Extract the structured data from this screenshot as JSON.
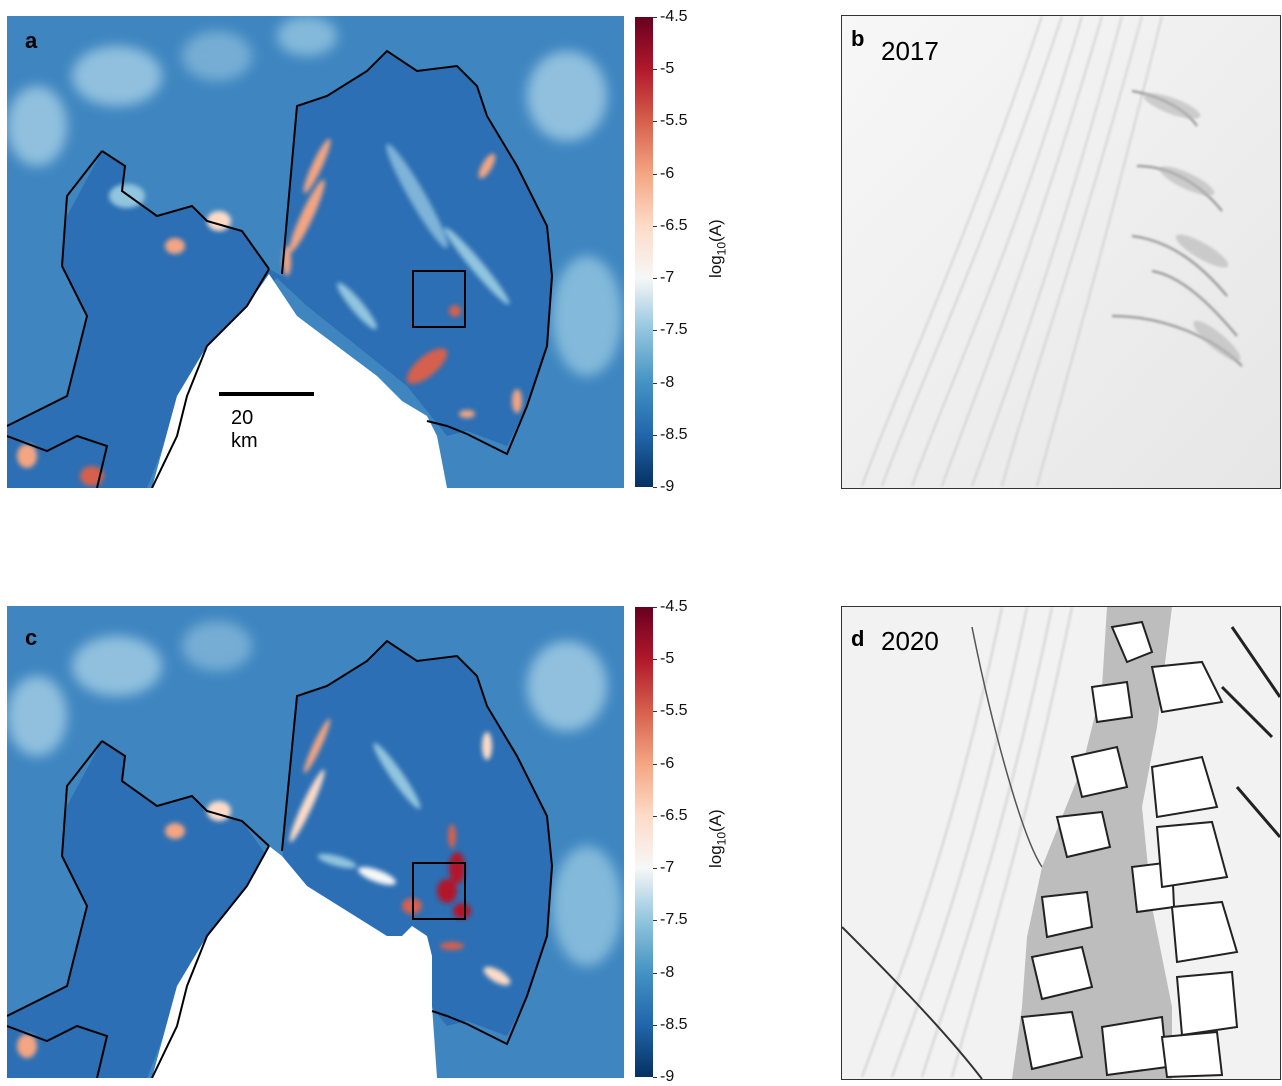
{
  "panels": {
    "a": {
      "letter": "a"
    },
    "b": {
      "letter": "b",
      "year": "2017"
    },
    "c": {
      "letter": "c"
    },
    "d": {
      "letter": "d",
      "year": "2020"
    }
  },
  "scale_bar": {
    "label": "20 km"
  },
  "colorbar": {
    "label_main": "log",
    "label_sub": "10",
    "label_tail": "(A)",
    "ticks": [
      "-4.5",
      "-5",
      "-5.5",
      "-6",
      "-6.5",
      "-7",
      "-7.5",
      "-8",
      "-8.5",
      "-9"
    ],
    "range": [
      -9,
      -4.5
    ],
    "colormap": "RdBu_r",
    "colors": [
      "#053061",
      "#2166ac",
      "#4393c3",
      "#92c5de",
      "#f7f7f7",
      "#fddbc7",
      "#f4a582",
      "#d6604d",
      "#b2182b",
      "#67001f"
    ]
  }
}
